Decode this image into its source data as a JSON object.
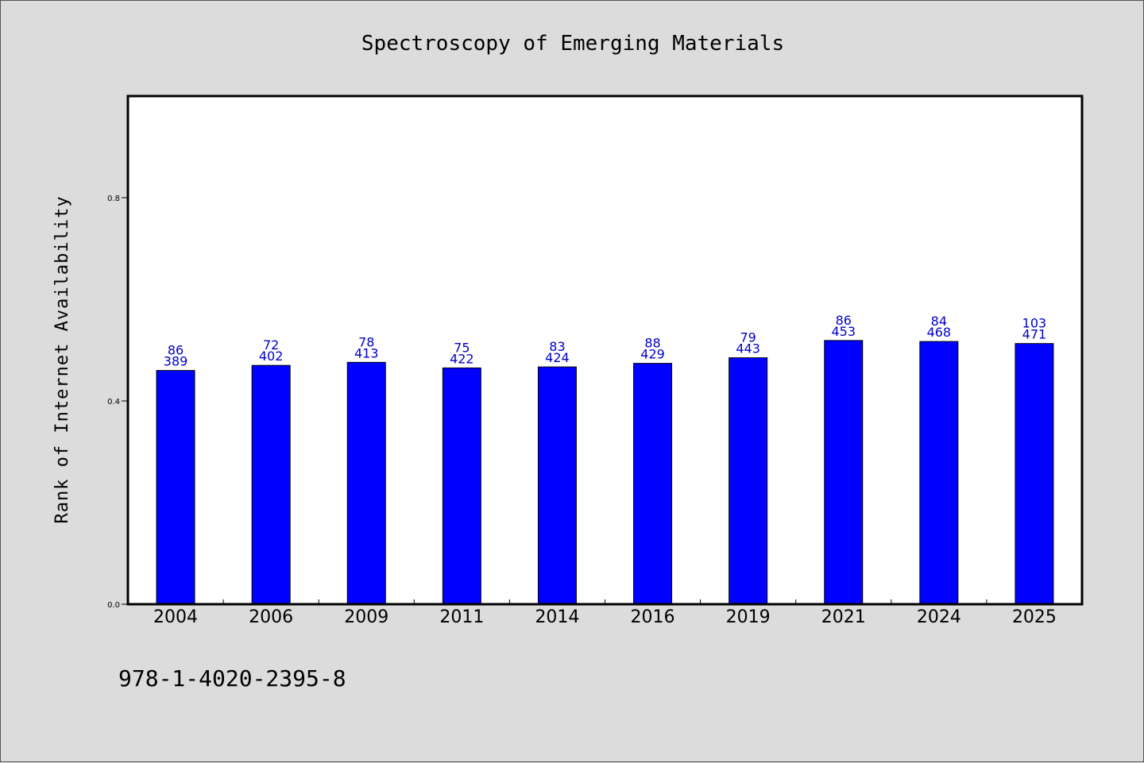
{
  "chart_data": {
    "type": "bar",
    "title": "Spectroscopy of Emerging Materials",
    "xlabel": "",
    "ylabel": "Rank of Internet Availability",
    "categories": [
      "2004",
      "2006",
      "2009",
      "2011",
      "2014",
      "2016",
      "2019",
      "2021",
      "2024",
      "2025"
    ],
    "values": [
      0.46,
      0.47,
      0.476,
      0.465,
      0.467,
      0.474,
      0.485,
      0.519,
      0.517,
      0.513
    ],
    "label_top": [
      "86",
      "72",
      "78",
      "75",
      "83",
      "88",
      "79",
      "86",
      "84",
      "103"
    ],
    "label_bottom": [
      "389",
      "402",
      "413",
      "422",
      "424",
      "429",
      "443",
      "453",
      "468",
      "471"
    ],
    "yticks": [
      0.0,
      0.4,
      0.8
    ],
    "ytick_labels": [
      "0.0",
      "0.4",
      "0.8"
    ],
    "ylim": [
      0,
      1.0
    ],
    "grid": false,
    "legend": "none",
    "bar_color": "#0000ff",
    "label_color": "#0000cc",
    "background": "#dcdcdc",
    "plot_background": "#ffffff"
  },
  "footnote": "978-1-4020-2395-8"
}
